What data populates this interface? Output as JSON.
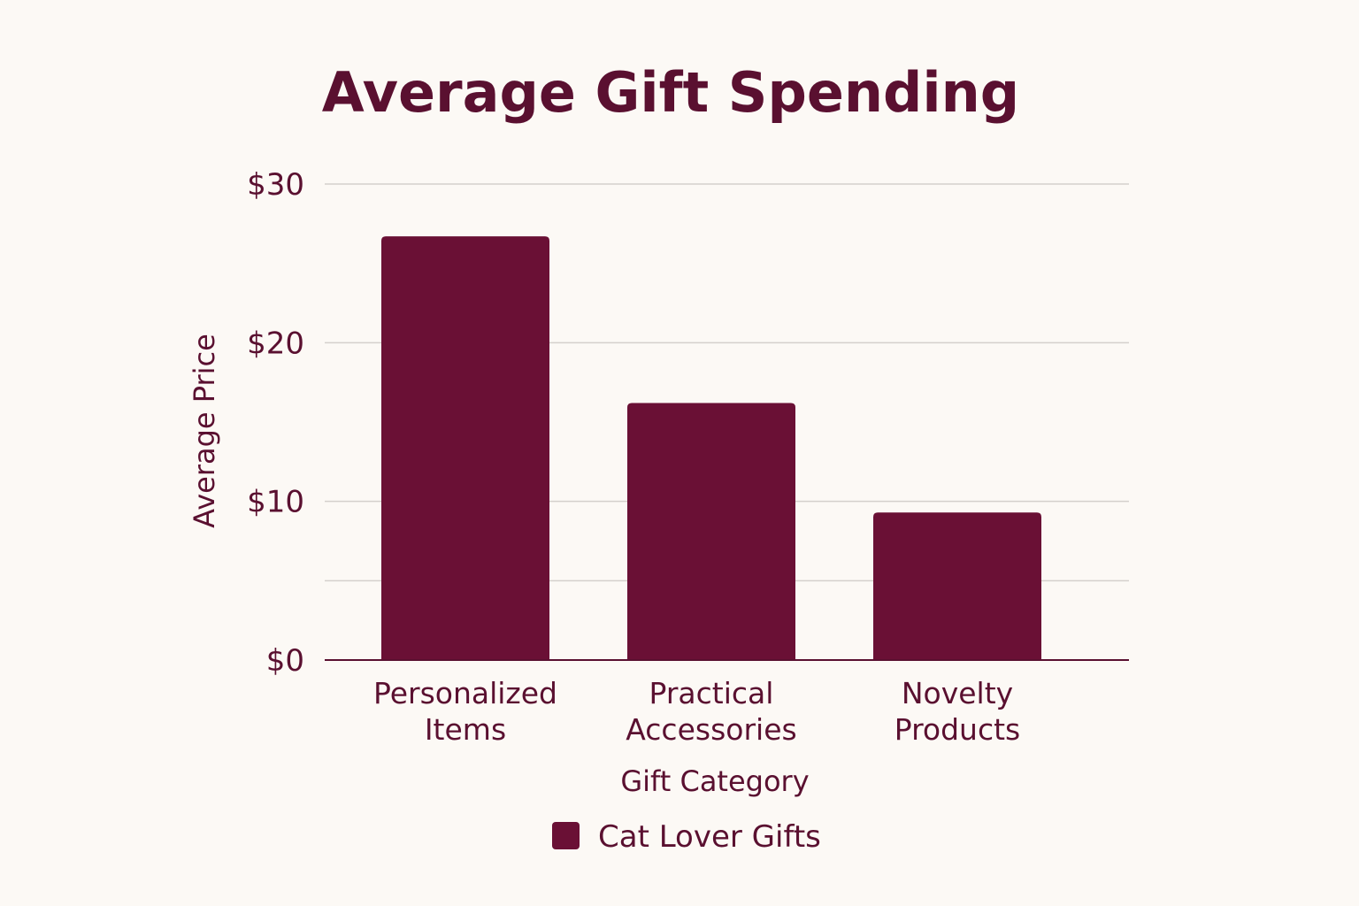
{
  "chart_data": {
    "type": "bar",
    "title": "Average Gift Spending",
    "xlabel": "Gift Category",
    "ylabel": "Average Price",
    "categories": [
      [
        "Personalized",
        "Items"
      ],
      [
        "Practical",
        "Accessories"
      ],
      [
        "Novelty",
        "Products"
      ]
    ],
    "series": [
      {
        "name": "Cat Lover Gifts",
        "values": [
          26.7,
          16.2,
          9.3
        ]
      }
    ],
    "ylim": [
      0,
      30
    ],
    "yticks": [
      {
        "value": 0,
        "label": "$0"
      },
      {
        "value": 5,
        "label": ""
      },
      {
        "value": 10,
        "label": "$10"
      },
      {
        "value": 20,
        "label": "$20"
      },
      {
        "value": 30,
        "label": "$30"
      }
    ],
    "grid": true,
    "legend_position": "bottom-center"
  },
  "colors": {
    "bar": "#6a1035",
    "text": "#5a1030",
    "title": "#5a1030",
    "grid": "#d4d0cc",
    "axis": "#5a1030",
    "background": "#fcf9f5"
  }
}
